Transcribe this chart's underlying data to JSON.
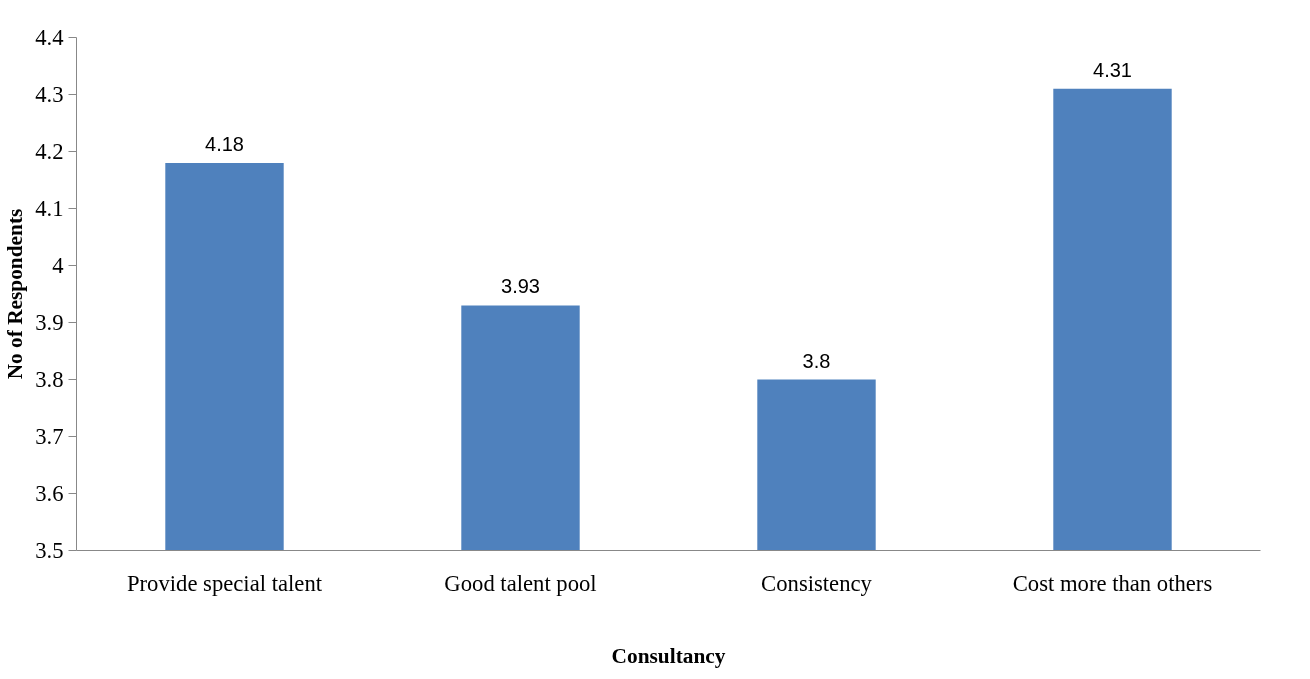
{
  "chart_data": {
    "type": "bar",
    "xlabel": "Consultancy",
    "ylabel": "No of Respondents",
    "categories": [
      "Provide special talent",
      "Good talent pool",
      "Consistency",
      "Cost more than others"
    ],
    "values": [
      4.18,
      3.93,
      3.8,
      4.31
    ],
    "color": "#4f81bd",
    "ylim": [
      3.5,
      4.4
    ],
    "yticks": [
      3.5,
      3.6,
      3.7,
      3.8,
      3.9,
      4,
      4.1,
      4.2,
      4.3,
      4.4
    ],
    "data_labels": true
  }
}
